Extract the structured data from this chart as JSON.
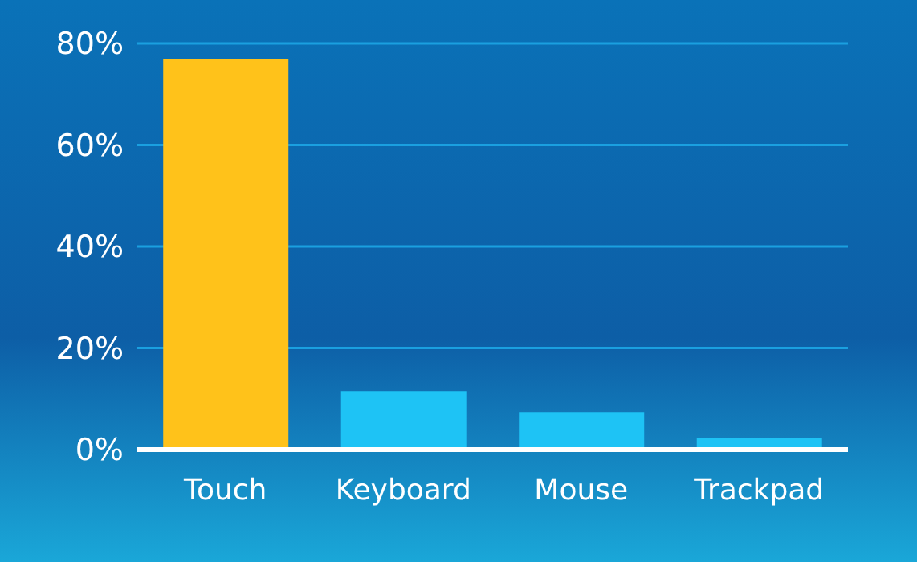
{
  "chart_data": {
    "type": "bar",
    "categories": [
      "Touch",
      "Keyboard",
      "Mouse",
      "Trackpad"
    ],
    "values": [
      77,
      11.5,
      7.4,
      2.2
    ],
    "colors": [
      "#ffc21a",
      "#1ec3f5",
      "#1ec3f5",
      "#1ec3f5"
    ],
    "ylim": [
      0,
      80
    ],
    "yticks": [
      {
        "value": 0,
        "label": "0%"
      },
      {
        "value": 20,
        "label": "20%"
      },
      {
        "value": 40,
        "label": "40%"
      },
      {
        "value": 60,
        "label": "60%"
      },
      {
        "value": 80,
        "label": "80%"
      }
    ],
    "grid": "y",
    "legend": false
  }
}
